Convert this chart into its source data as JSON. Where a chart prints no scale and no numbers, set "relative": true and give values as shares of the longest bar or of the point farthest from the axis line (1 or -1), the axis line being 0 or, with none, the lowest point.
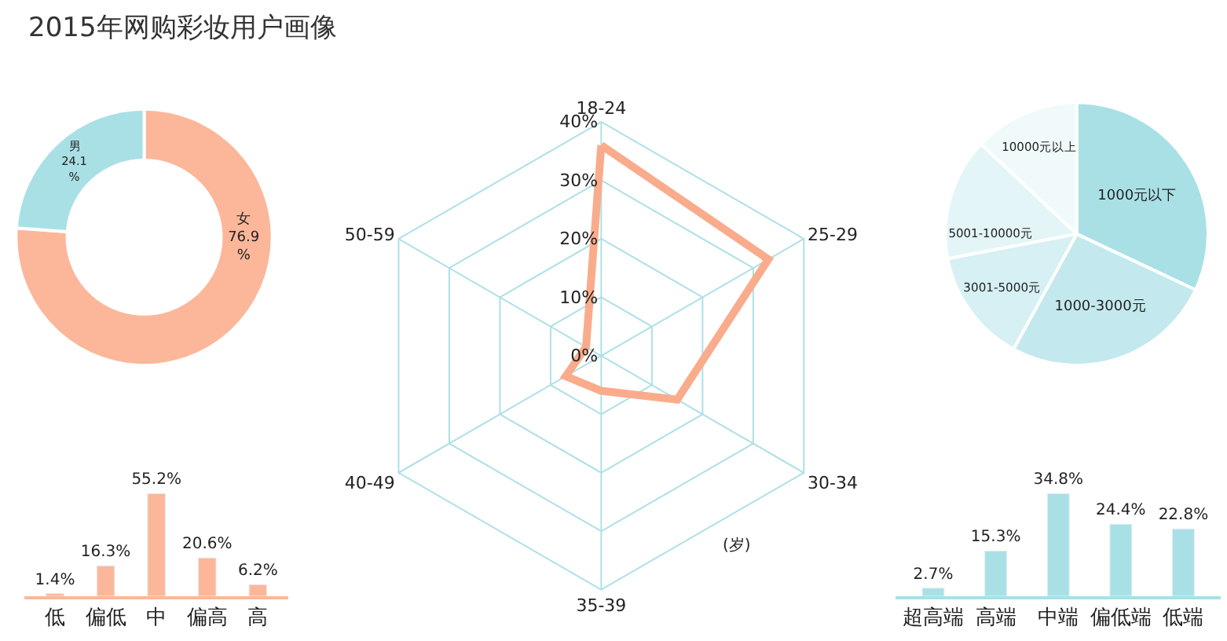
{
  "chart_data": [
    {
      "type": "other",
      "title": "2015年网购彩妆用户画像"
    },
    {
      "type": "donut",
      "categories": [
        "女",
        "男"
      ],
      "values": [
        76.9,
        24.1
      ],
      "value_labels": [
        "76.9\n%",
        "24.1\n%"
      ],
      "colors": [
        "#fcb79a",
        "#a9e0e6"
      ]
    },
    {
      "type": "bar",
      "categories": [
        "低",
        "偏低",
        "中",
        "偏高",
        "高"
      ],
      "values": [
        1.4,
        16.3,
        55.2,
        20.6,
        6.2
      ],
      "value_labels": [
        "1.4%",
        "16.3%",
        "55.2%",
        "20.6%",
        "6.2%"
      ],
      "color": "#fcb79a",
      "grid": false,
      "tick_labels": "x"
    },
    {
      "type": "radar",
      "categories": [
        "18-24",
        "25-29",
        "30-34",
        "35-39",
        "40-49",
        "50-59"
      ],
      "series": [
        {
          "color": "#f9ac8c",
          "values": [
            36,
            33,
            15,
            6,
            7,
            3
          ]
        }
      ],
      "ylim": [
        0,
        40
      ],
      "yticks": [
        {
          "value": 0,
          "label": "0%"
        },
        {
          "value": 10,
          "label": "10%"
        },
        {
          "value": 20,
          "label": "20%"
        },
        {
          "value": 30,
          "label": "30%"
        },
        {
          "value": 40,
          "label": "40%"
        }
      ],
      "grid": true,
      "marker": "none",
      "line_style": "solid",
      "annotations": [
        "(岁)"
      ]
    },
    {
      "type": "pie",
      "relative": true,
      "categories": [
        "1000元以下",
        "1000-3000元",
        "3001-5000元",
        "5001-10000元",
        "10000元以上"
      ],
      "values": [
        32,
        26,
        14,
        15,
        13
      ],
      "colors": [
        "#a9e0e6",
        "#c3e9ee",
        "#d6f0f3",
        "#e4f5f7",
        "#f1fafb"
      ]
    },
    {
      "type": "bar",
      "categories": [
        "超高端",
        "高端",
        "中端",
        "偏低端",
        "低端"
      ],
      "values": [
        2.7,
        15.3,
        34.8,
        24.4,
        22.8
      ],
      "value_labels": [
        "2.7%",
        "15.3%",
        "34.8%",
        "24.4%",
        "22.8%"
      ],
      "color": "#a9e0e6",
      "grid": false,
      "tick_labels": "x"
    }
  ]
}
